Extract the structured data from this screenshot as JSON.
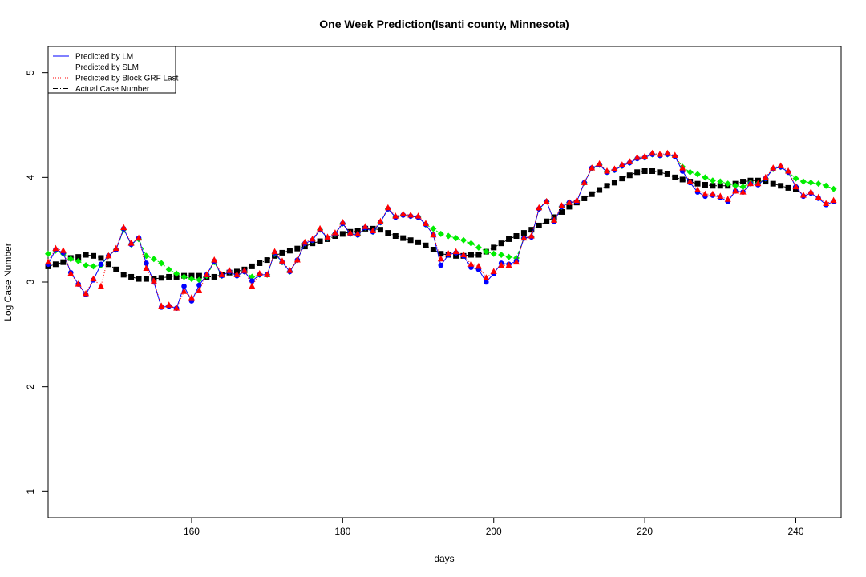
{
  "chart_data": {
    "type": "line",
    "title": "One Week Prediction(Isanti county, Minnesota)",
    "xlabel": "days",
    "ylabel": "Log Case Number",
    "xlim": [
      141,
      246
    ],
    "ylim": [
      0.75,
      5.25
    ],
    "xticks": [
      160,
      180,
      200,
      220,
      240
    ],
    "yticks": [
      1,
      2,
      3,
      4,
      5
    ],
    "grid": false,
    "legend_position": "top-left",
    "x_start": 141,
    "series": [
      {
        "name": "Predicted by LM",
        "color": "#0000ff",
        "line": "solid",
        "marker": "circle",
        "values": [
          3.17,
          3.31,
          3.28,
          3.09,
          2.98,
          2.88,
          3.02,
          3.17,
          3.25,
          3.31,
          3.51,
          3.36,
          3.42,
          3.18,
          3.0,
          2.76,
          2.77,
          2.75,
          2.96,
          2.82,
          2.97,
          3.07,
          3.2,
          3.06,
          3.1,
          3.06,
          3.1,
          3.01,
          3.07,
          3.07,
          3.28,
          3.19,
          3.1,
          3.21,
          3.37,
          3.4,
          3.5,
          3.42,
          3.46,
          3.56,
          3.46,
          3.45,
          3.52,
          3.48,
          3.57,
          3.7,
          3.62,
          3.64,
          3.63,
          3.62,
          3.55,
          3.45,
          3.16,
          3.26,
          3.28,
          3.25,
          3.14,
          3.12,
          3.0,
          3.08,
          3.18,
          3.17,
          3.2,
          3.42,
          3.43,
          3.7,
          3.77,
          3.58,
          3.72,
          3.76,
          3.77,
          3.95,
          4.09,
          4.12,
          4.05,
          4.07,
          4.11,
          4.14,
          4.18,
          4.19,
          4.22,
          4.21,
          4.22,
          4.2,
          4.06,
          3.95,
          3.86,
          3.82,
          3.83,
          3.81,
          3.77,
          3.87,
          3.86,
          3.94,
          3.93,
          3.99,
          4.08,
          4.1,
          4.05,
          3.91,
          3.82,
          3.85,
          3.8,
          3.74,
          3.77
        ]
      },
      {
        "name": "Predicted by SLM",
        "color": "#00ee00",
        "line": "dashed",
        "marker": "diamond",
        "values": [
          3.27,
          3.3,
          3.27,
          3.22,
          3.2,
          3.16,
          3.15,
          3.16,
          3.25,
          3.31,
          3.5,
          3.36,
          3.41,
          3.25,
          3.22,
          3.18,
          3.12,
          3.08,
          3.05,
          3.03,
          3.02,
          3.06,
          3.19,
          3.06,
          3.1,
          3.06,
          3.1,
          3.05,
          3.07,
          3.07,
          3.27,
          3.19,
          3.1,
          3.21,
          3.37,
          3.4,
          3.5,
          3.42,
          3.46,
          3.56,
          3.46,
          3.45,
          3.52,
          3.48,
          3.57,
          3.7,
          3.62,
          3.64,
          3.63,
          3.62,
          3.55,
          3.51,
          3.46,
          3.44,
          3.42,
          3.4,
          3.37,
          3.33,
          3.29,
          3.27,
          3.26,
          3.24,
          3.23,
          3.42,
          3.43,
          3.7,
          3.77,
          3.58,
          3.72,
          3.76,
          3.77,
          3.95,
          4.09,
          4.12,
          4.05,
          4.07,
          4.11,
          4.14,
          4.18,
          4.19,
          4.22,
          4.21,
          4.22,
          4.2,
          4.1,
          4.05,
          4.03,
          4.0,
          3.97,
          3.96,
          3.94,
          3.92,
          3.91,
          3.95,
          3.94,
          3.99,
          4.08,
          4.1,
          4.05,
          3.99,
          3.96,
          3.95,
          3.94,
          3.92,
          3.89
        ]
      },
      {
        "name": "Predicted by Block GRF Last",
        "color": "#ff0000",
        "line": "dotted",
        "marker": "triangle",
        "values": [
          3.19,
          3.32,
          3.3,
          3.08,
          2.98,
          2.89,
          3.03,
          2.96,
          3.25,
          3.32,
          3.52,
          3.37,
          3.42,
          3.13,
          3.01,
          2.77,
          2.78,
          2.75,
          2.91,
          2.85,
          2.92,
          3.07,
          3.21,
          3.07,
          3.11,
          3.07,
          3.11,
          2.96,
          3.08,
          3.07,
          3.29,
          3.2,
          3.11,
          3.21,
          3.38,
          3.41,
          3.51,
          3.43,
          3.47,
          3.57,
          3.47,
          3.46,
          3.53,
          3.49,
          3.58,
          3.71,
          3.63,
          3.65,
          3.64,
          3.63,
          3.56,
          3.45,
          3.22,
          3.27,
          3.29,
          3.26,
          3.17,
          3.15,
          3.04,
          3.1,
          3.16,
          3.16,
          3.19,
          3.42,
          3.44,
          3.71,
          3.77,
          3.59,
          3.73,
          3.76,
          3.78,
          3.95,
          4.09,
          4.13,
          4.06,
          4.08,
          4.12,
          4.15,
          4.19,
          4.2,
          4.23,
          4.22,
          4.23,
          4.21,
          4.09,
          3.96,
          3.88,
          3.84,
          3.84,
          3.82,
          3.79,
          3.87,
          3.86,
          3.94,
          3.94,
          4.0,
          4.09,
          4.11,
          4.06,
          3.91,
          3.83,
          3.86,
          3.81,
          3.75,
          3.78
        ]
      },
      {
        "name": "Actual Case Number",
        "color": "#000000",
        "line": "dashdot",
        "marker": "square",
        "values": [
          3.15,
          3.17,
          3.19,
          3.23,
          3.24,
          3.26,
          3.25,
          3.23,
          3.17,
          3.12,
          3.07,
          3.05,
          3.03,
          3.03,
          3.03,
          3.04,
          3.05,
          3.05,
          3.06,
          3.06,
          3.06,
          3.05,
          3.05,
          3.07,
          3.09,
          3.1,
          3.12,
          3.15,
          3.18,
          3.21,
          3.25,
          3.28,
          3.3,
          3.32,
          3.34,
          3.37,
          3.39,
          3.41,
          3.44,
          3.46,
          3.48,
          3.49,
          3.51,
          3.51,
          3.5,
          3.47,
          3.44,
          3.42,
          3.4,
          3.38,
          3.35,
          3.31,
          3.27,
          3.26,
          3.25,
          3.25,
          3.26,
          3.26,
          3.29,
          3.33,
          3.37,
          3.41,
          3.44,
          3.47,
          3.5,
          3.54,
          3.58,
          3.62,
          3.67,
          3.72,
          3.76,
          3.8,
          3.84,
          3.88,
          3.92,
          3.95,
          3.99,
          4.02,
          4.05,
          4.06,
          4.06,
          4.05,
          4.03,
          4.0,
          3.98,
          3.96,
          3.94,
          3.93,
          3.92,
          3.92,
          3.92,
          3.94,
          3.96,
          3.97,
          3.97,
          3.96,
          3.94,
          3.92,
          3.9,
          3.89
        ]
      }
    ]
  }
}
